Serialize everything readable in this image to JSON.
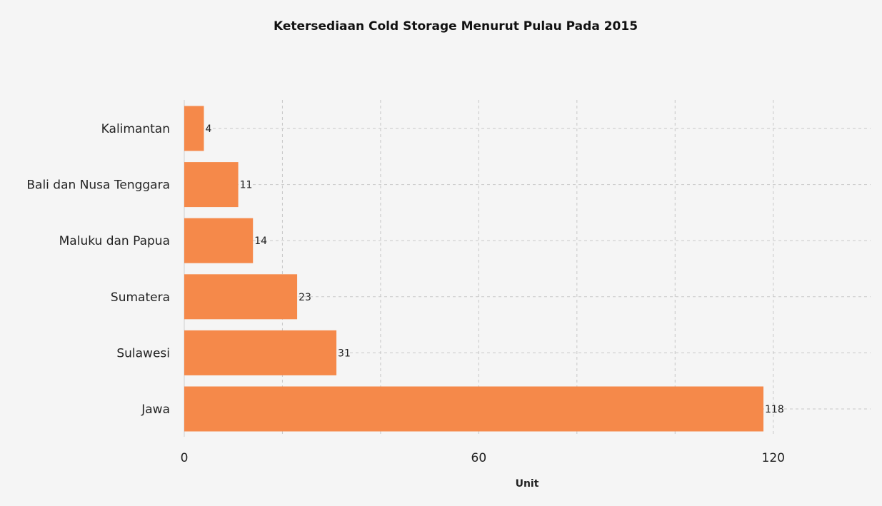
{
  "chart_data": {
    "type": "bar",
    "orientation": "horizontal",
    "title": "Ketersediaan Cold Storage Menurut Pulau Pada 2015",
    "xlabel": "Unit",
    "ylabel": "",
    "categories": [
      "Kalimantan",
      "Bali dan Nusa Tenggara",
      "Maluku dan Papua",
      "Sumatera",
      "Sulawesi",
      "Jawa"
    ],
    "values": [
      4,
      11,
      14,
      23,
      31,
      118
    ],
    "xlim": [
      0,
      140
    ],
    "xticks": [
      0,
      60,
      120
    ],
    "grid": true,
    "bar_color": "#f5894a",
    "legend": "none"
  }
}
